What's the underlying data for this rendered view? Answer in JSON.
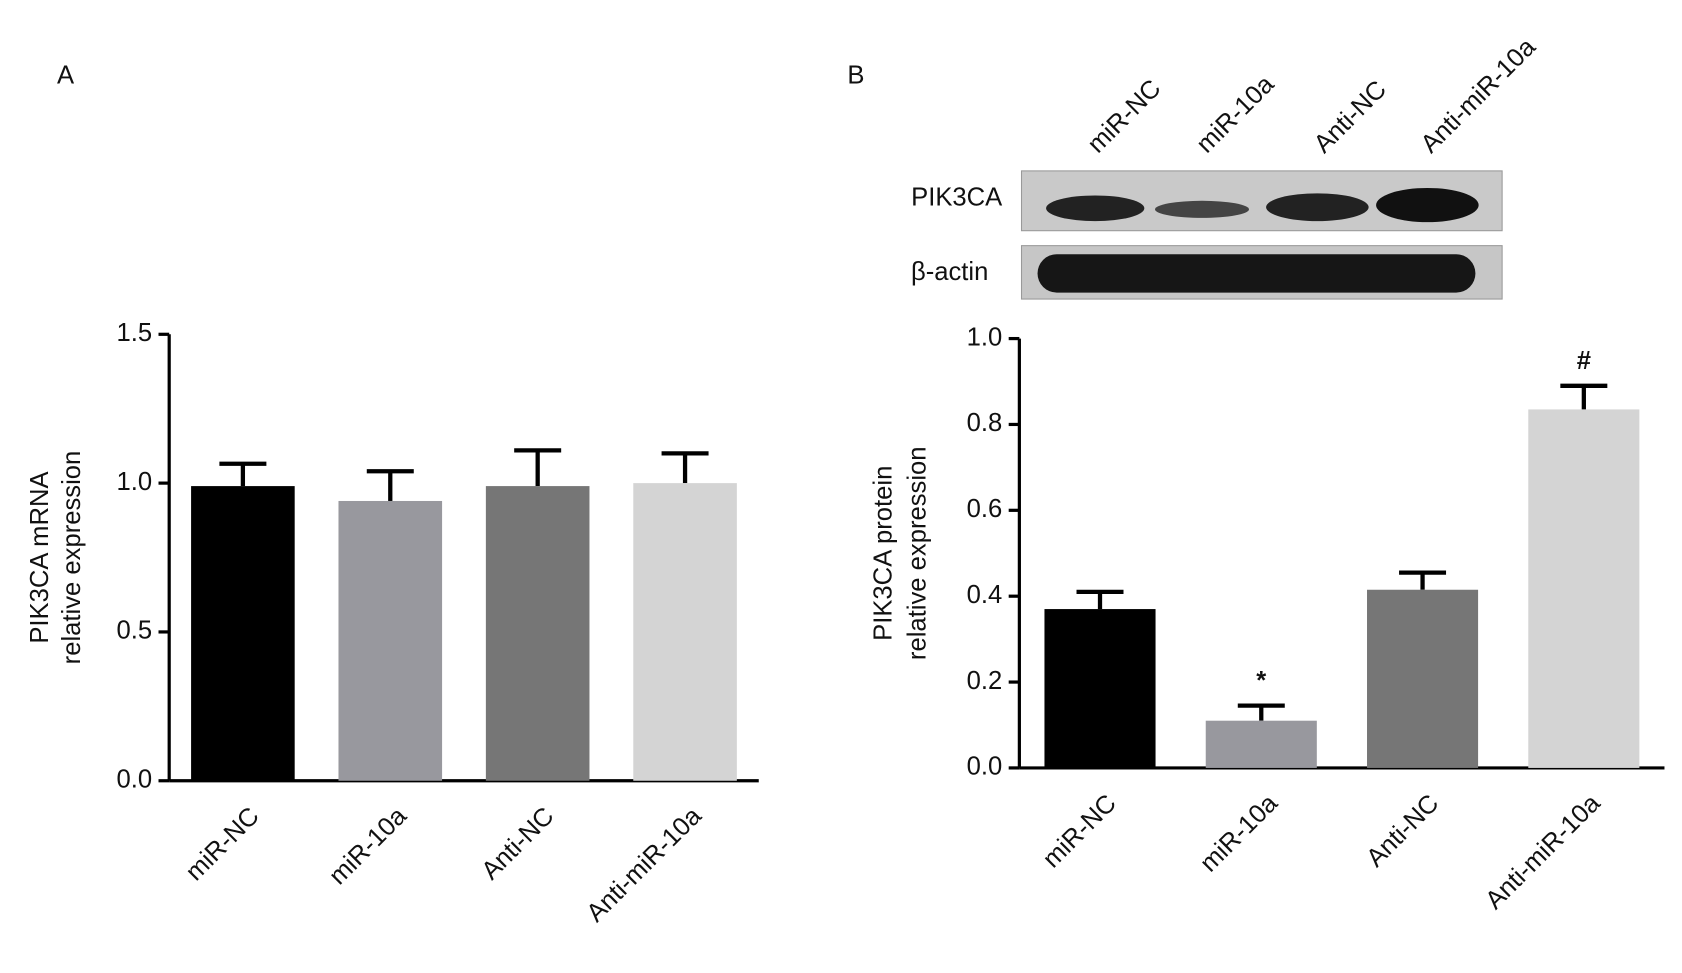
{
  "chart_data": [
    {
      "type": "bar",
      "panel": "A",
      "y_label": [
        "PIK3CA mRNA",
        "relative expression"
      ],
      "categories": [
        "miR-NC",
        "miR-10a",
        "Anti-NC",
        "Anti-miR-10a"
      ],
      "values": [
        0.99,
        0.94,
        0.99,
        1.0
      ],
      "errors": [
        0.075,
        0.1,
        0.12,
        0.1
      ],
      "colors": [
        "#000000",
        "#98989e",
        "#767676",
        "#d4d4d4"
      ],
      "ylim": [
        0,
        1.5
      ],
      "yticks": [
        {
          "value": 0,
          "label": "0.0"
        },
        0.5,
        {
          "value": 1,
          "label": "1.0"
        },
        1.5
      ]
    },
    {
      "type": "bar",
      "panel": "B",
      "y_label": [
        "PIK3CA protein",
        "relative expression"
      ],
      "categories": [
        "miR-NC",
        "miR-10a",
        "Anti-NC",
        "Anti-miR-10a"
      ],
      "values": [
        0.37,
        0.11,
        0.415,
        0.835
      ],
      "errors": [
        0.04,
        0.035,
        0.04,
        0.055
      ],
      "annotations": [
        null,
        "*",
        null,
        "#"
      ],
      "colors": [
        "#000000",
        "#98989e",
        "#767676",
        "#d4d4d4"
      ],
      "ylim": [
        0,
        1.0
      ],
      "yticks": [
        {
          "value": 0,
          "label": "0.0"
        },
        0.2,
        0.4,
        0.6,
        0.8,
        {
          "value": 1,
          "label": "1.0"
        }
      ],
      "blot_rows": [
        "PIK3CA",
        "β-actin"
      ]
    }
  ]
}
